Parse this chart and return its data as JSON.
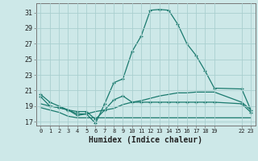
{
  "xlabel": "Humidex (Indice chaleur)",
  "background_color": "#cde8e8",
  "grid_color": "#aacfcf",
  "line_color": "#1a7a6e",
  "xticks": [
    0,
    1,
    2,
    3,
    4,
    5,
    6,
    7,
    8,
    9,
    10,
    11,
    12,
    13,
    14,
    15,
    16,
    17,
    18,
    19,
    22,
    23
  ],
  "yticks": [
    17,
    19,
    21,
    23,
    25,
    27,
    29,
    31
  ],
  "ylim": [
    16.5,
    32.2
  ],
  "xlim": [
    -0.5,
    23.5
  ],
  "line1_x": [
    0,
    1,
    2,
    3,
    4,
    5,
    6,
    7,
    8,
    9,
    10,
    11,
    12,
    13,
    14,
    15,
    16,
    17,
    18,
    19,
    22,
    23
  ],
  "line1_y": [
    20.5,
    19.5,
    19.0,
    18.5,
    17.8,
    18.0,
    16.8,
    19.3,
    22.0,
    22.5,
    26.0,
    28.0,
    31.3,
    31.4,
    31.3,
    29.5,
    27.0,
    25.5,
    23.5,
    21.3,
    21.2,
    18.5
  ],
  "line2_x": [
    0,
    1,
    2,
    3,
    4,
    5,
    6,
    7,
    8,
    9,
    10,
    11,
    12,
    13,
    14,
    15,
    16,
    17,
    18,
    19,
    22,
    23
  ],
  "line2_y": [
    19.3,
    19.0,
    18.8,
    18.5,
    18.0,
    18.0,
    18.3,
    18.5,
    18.7,
    19.2,
    19.5,
    19.7,
    20.0,
    20.3,
    20.5,
    20.7,
    20.7,
    20.8,
    20.8,
    20.8,
    19.5,
    18.5
  ],
  "line3_x": [
    0,
    1,
    2,
    3,
    4,
    5,
    6,
    7,
    8,
    9,
    10,
    11,
    12,
    13,
    14,
    15,
    16,
    17,
    18,
    19,
    22,
    23
  ],
  "line3_y": [
    18.8,
    18.5,
    18.2,
    17.7,
    17.5,
    17.5,
    17.5,
    17.5,
    17.5,
    17.5,
    17.5,
    17.5,
    17.5,
    17.5,
    17.5,
    17.5,
    17.5,
    17.5,
    17.5,
    17.5,
    17.5,
    17.5
  ],
  "line4_x": [
    0,
    1,
    2,
    3,
    4,
    5,
    6,
    7,
    8,
    9,
    10,
    11,
    12,
    13,
    14,
    15,
    16,
    17,
    18,
    19,
    22,
    23
  ],
  "line4_y": [
    20.2,
    19.0,
    18.8,
    18.5,
    18.3,
    18.3,
    17.3,
    18.5,
    19.8,
    20.3,
    19.5,
    19.5,
    19.5,
    19.5,
    19.5,
    19.5,
    19.5,
    19.5,
    19.5,
    19.5,
    19.3,
    18.2
  ]
}
